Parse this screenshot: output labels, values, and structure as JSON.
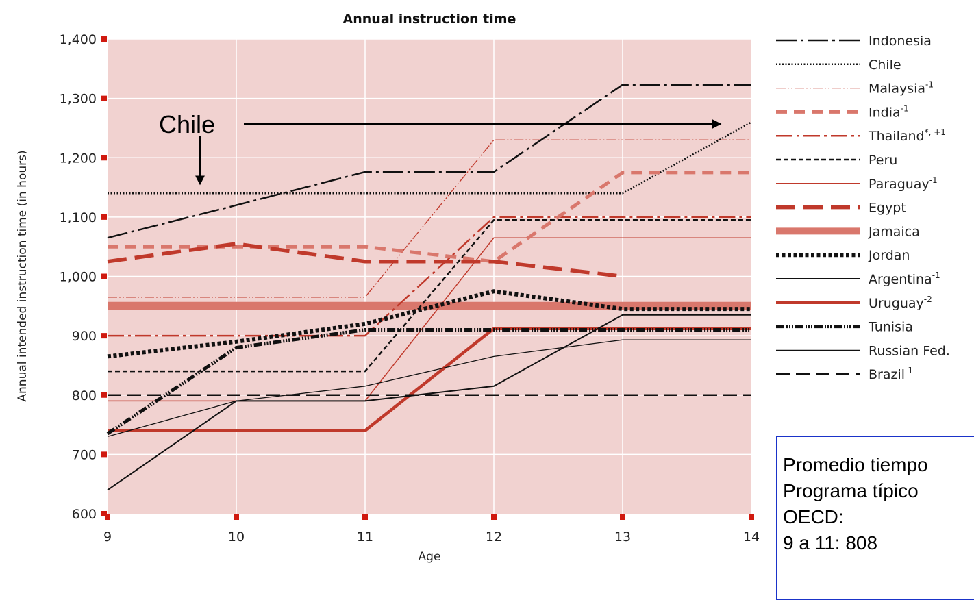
{
  "chart_data": {
    "type": "line",
    "title": "Annual instruction time",
    "xlabel": "Age",
    "ylabel": "Annual intended instruction time (in hours)",
    "x": [
      9,
      10,
      11,
      12,
      13,
      14
    ],
    "xlim": [
      9,
      14
    ],
    "ylim": [
      600,
      1400
    ],
    "x_ticks": [
      "9",
      "10",
      "11",
      "12",
      "13",
      "14"
    ],
    "y_ticks": [
      "600",
      "700",
      "800",
      "900",
      "1,000",
      "1,100",
      "1,200",
      "1,300",
      "1,400"
    ],
    "grid": true,
    "legend_position": "right",
    "colors": {
      "plot_bg": "#f1d2d0",
      "dark_red": "#c0392b",
      "light_red": "#d9776c",
      "black": "#111111",
      "grid": "#ffffff"
    },
    "series": [
      {
        "name": "Indonesia",
        "sup": "",
        "values": [
          1065,
          1120,
          1176,
          1176,
          1323,
          1323
        ]
      },
      {
        "name": "Chile",
        "sup": "",
        "values": [
          1140,
          1140,
          1140,
          1140,
          1140,
          1260
        ]
      },
      {
        "name": "Malaysia",
        "sup": "-1",
        "values": [
          965,
          965,
          965,
          1230,
          1230,
          1230
        ]
      },
      {
        "name": "India",
        "sup": "-1",
        "values": [
          1050,
          1050,
          1050,
          1025,
          1175,
          1175
        ]
      },
      {
        "name": "Thailand",
        "sup": "*, +1",
        "values": [
          900,
          900,
          900,
          1100,
          1100,
          1100
        ]
      },
      {
        "name": "Peru",
        "sup": "",
        "values": [
          840,
          840,
          840,
          1095,
          1095,
          1095
        ]
      },
      {
        "name": "Paraguay",
        "sup": "-1",
        "values": [
          790,
          790,
          790,
          1065,
          1065,
          1065
        ]
      },
      {
        "name": "Egypt",
        "sup": "",
        "values": [
          1025,
          1055,
          1025,
          1025,
          1000,
          null
        ]
      },
      {
        "name": "Jamaica",
        "sup": "",
        "values": [
          950,
          950,
          950,
          950,
          950,
          950
        ]
      },
      {
        "name": "Jordan",
        "sup": "",
        "values": [
          865,
          890,
          920,
          975,
          945,
          945
        ]
      },
      {
        "name": "Argentina",
        "sup": "-1",
        "values": [
          640,
          790,
          790,
          815,
          935,
          935
        ]
      },
      {
        "name": "Uruguay",
        "sup": "-2",
        "values": [
          740,
          740,
          740,
          912,
          912,
          912
        ]
      },
      {
        "name": "Tunisia",
        "sup": "",
        "values": [
          735,
          880,
          910,
          910,
          910,
          910
        ]
      },
      {
        "name": "Russian Fed.",
        "sup": "",
        "values": [
          730,
          790,
          815,
          865,
          893,
          893
        ]
      },
      {
        "name": "Brazil",
        "sup": "-1",
        "values": [
          800,
          800,
          800,
          800,
          800,
          800
        ]
      }
    ]
  },
  "annotation": {
    "label": "Chile"
  },
  "note": {
    "lines": [
      "Promedio tiempo",
      "Programa típico",
      "OECD:",
      " 9 a 11: 808"
    ]
  }
}
